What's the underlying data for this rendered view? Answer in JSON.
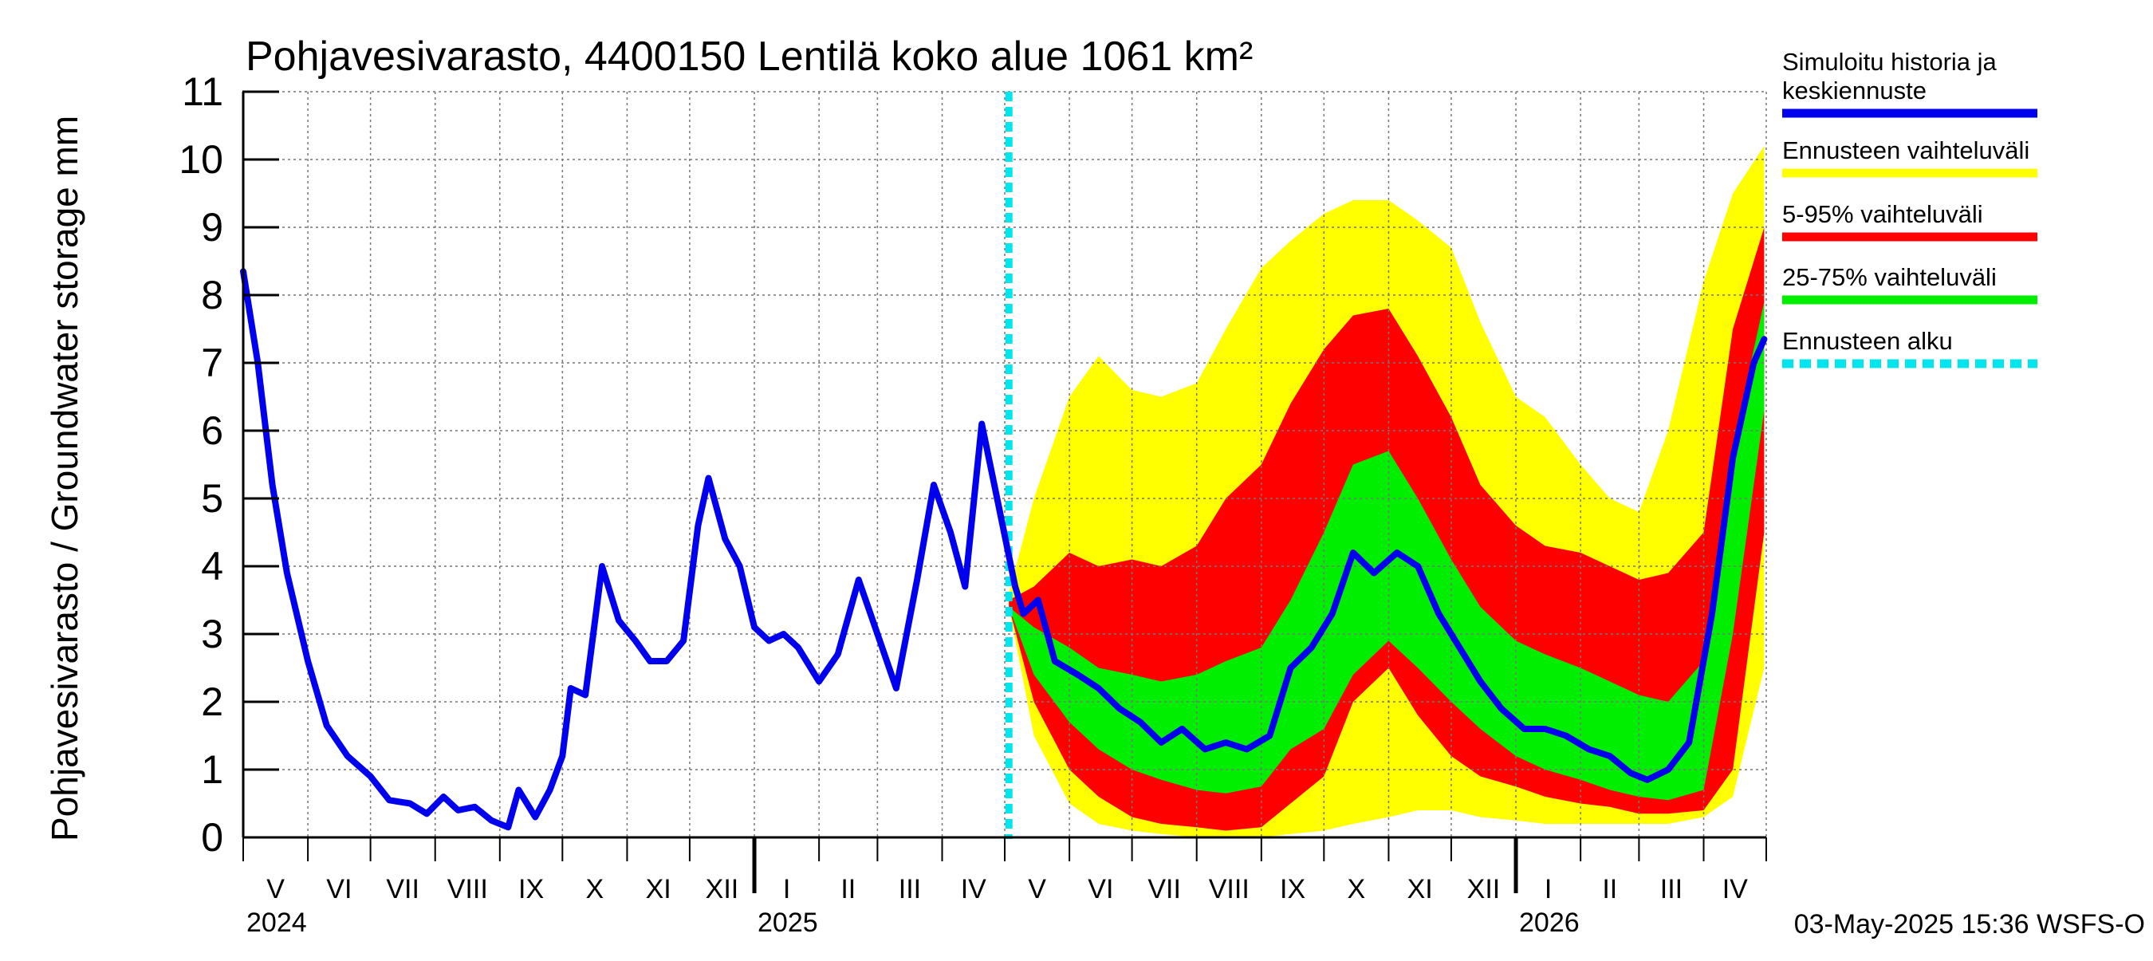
{
  "chart_data": {
    "type": "area",
    "title": "Pohjavesivarasto, 4400150 Lentilä koko alue 1061 km²",
    "ylabel": "Pohjavesivarasto / Groundwater storage   mm",
    "ylim": [
      0,
      11
    ],
    "yticks": [
      "0",
      "1",
      "2",
      "3",
      "4",
      "5",
      "6",
      "7",
      "8",
      "9",
      "10",
      "11"
    ],
    "xlim": [
      "2024-05-01",
      "2026-04-30"
    ],
    "grid": true,
    "legend_position": "right",
    "month_labels": [
      "V",
      "VI",
      "VII",
      "VIII",
      "IX",
      "X",
      "XI",
      "XII",
      "I",
      "II",
      "III",
      "IV",
      "V",
      "VI",
      "VII",
      "VIII",
      "IX",
      "X",
      "XI",
      "XII",
      "I",
      "II",
      "III",
      "IV"
    ],
    "year_labels": [
      "2024",
      "2025",
      "2026"
    ],
    "forecast_start": "2025-05-03",
    "footer": "03-May-2025 15:36 WSFS-O",
    "legend": [
      {
        "label": "Simuloitu historia ja keskiennuste",
        "color": "#0000ee"
      },
      {
        "label": "Ennusteen vaihteluväli",
        "color": "#ffff00"
      },
      {
        "label": "5-95% vaihteluväli",
        "color": "#ff0000"
      },
      {
        "label": "25-75% vaihteluväli",
        "color": "#00ee00"
      },
      {
        "label": "Ennusteen alku",
        "color": "#00e5ee"
      }
    ],
    "series": [
      {
        "name": "Simuloitu historia ja keskiennuste",
        "color": "#0000ee",
        "points": [
          [
            "2024-05-01",
            8.35
          ],
          [
            "2024-05-08",
            7.0
          ],
          [
            "2024-05-15",
            5.2
          ],
          [
            "2024-05-22",
            3.9
          ],
          [
            "2024-06-01",
            2.6
          ],
          [
            "2024-06-10",
            1.65
          ],
          [
            "2024-06-20",
            1.2
          ],
          [
            "2024-07-01",
            0.9
          ],
          [
            "2024-07-10",
            0.55
          ],
          [
            "2024-07-20",
            0.5
          ],
          [
            "2024-07-28",
            0.35
          ],
          [
            "2024-08-05",
            0.6
          ],
          [
            "2024-08-12",
            0.4
          ],
          [
            "2024-08-20",
            0.45
          ],
          [
            "2024-08-28",
            0.25
          ],
          [
            "2024-09-05",
            0.15
          ],
          [
            "2024-09-10",
            0.7
          ],
          [
            "2024-09-18",
            0.3
          ],
          [
            "2024-09-25",
            0.7
          ],
          [
            "2024-10-01",
            1.2
          ],
          [
            "2024-10-05",
            2.2
          ],
          [
            "2024-10-12",
            2.1
          ],
          [
            "2024-10-20",
            4.0
          ],
          [
            "2024-10-28",
            3.2
          ],
          [
            "2024-11-05",
            2.9
          ],
          [
            "2024-11-12",
            2.6
          ],
          [
            "2024-11-20",
            2.6
          ],
          [
            "2024-11-28",
            2.9
          ],
          [
            "2024-12-05",
            4.6
          ],
          [
            "2024-12-10",
            5.3
          ],
          [
            "2024-12-18",
            4.4
          ],
          [
            "2024-12-25",
            4.0
          ],
          [
            "2025-01-01",
            3.1
          ],
          [
            "2025-01-08",
            2.9
          ],
          [
            "2025-01-15",
            3.0
          ],
          [
            "2025-01-22",
            2.8
          ],
          [
            "2025-02-01",
            2.3
          ],
          [
            "2025-02-10",
            2.7
          ],
          [
            "2025-02-20",
            3.8
          ],
          [
            "2025-03-01",
            3.0
          ],
          [
            "2025-03-10",
            2.2
          ],
          [
            "2025-03-20",
            3.8
          ],
          [
            "2025-03-28",
            5.2
          ],
          [
            "2025-04-05",
            4.5
          ],
          [
            "2025-04-12",
            3.7
          ],
          [
            "2025-04-20",
            6.1
          ],
          [
            "2025-04-28",
            4.9
          ],
          [
            "2025-05-06",
            3.7
          ],
          [
            "2025-05-10",
            3.3
          ],
          [
            "2025-05-17",
            3.5
          ],
          [
            "2025-05-25",
            2.6
          ],
          [
            "2025-06-05",
            2.4
          ],
          [
            "2025-06-15",
            2.2
          ],
          [
            "2025-06-25",
            1.9
          ],
          [
            "2025-07-05",
            1.7
          ],
          [
            "2025-07-15",
            1.4
          ],
          [
            "2025-07-25",
            1.6
          ],
          [
            "2025-08-05",
            1.3
          ],
          [
            "2025-08-15",
            1.4
          ],
          [
            "2025-08-25",
            1.3
          ],
          [
            "2025-09-05",
            1.5
          ],
          [
            "2025-09-15",
            2.5
          ],
          [
            "2025-09-25",
            2.8
          ],
          [
            "2025-10-05",
            3.3
          ],
          [
            "2025-10-15",
            4.2
          ],
          [
            "2025-10-25",
            3.9
          ],
          [
            "2025-11-05",
            4.2
          ],
          [
            "2025-11-15",
            4.0
          ],
          [
            "2025-11-25",
            3.3
          ],
          [
            "2025-12-05",
            2.8
          ],
          [
            "2025-12-15",
            2.3
          ],
          [
            "2025-12-25",
            1.9
          ],
          [
            "2026-01-05",
            1.6
          ],
          [
            "2026-01-15",
            1.6
          ],
          [
            "2026-01-25",
            1.5
          ],
          [
            "2026-02-05",
            1.3
          ],
          [
            "2026-02-15",
            1.2
          ],
          [
            "2026-02-25",
            0.95
          ],
          [
            "2026-03-05",
            0.85
          ],
          [
            "2026-03-15",
            1.0
          ],
          [
            "2026-03-25",
            1.4
          ],
          [
            "2026-04-05",
            3.3
          ],
          [
            "2026-04-15",
            5.6
          ],
          [
            "2026-04-25",
            7.0
          ],
          [
            "2026-04-30",
            7.35
          ]
        ]
      }
    ],
    "bands": {
      "x": [
        "2025-05-03",
        "2025-05-15",
        "2025-06-01",
        "2025-06-15",
        "2025-07-01",
        "2025-07-15",
        "2025-08-01",
        "2025-08-15",
        "2025-09-01",
        "2025-09-15",
        "2025-10-01",
        "2025-10-15",
        "2025-11-01",
        "2025-11-15",
        "2025-12-01",
        "2025-12-15",
        "2026-01-01",
        "2026-01-15",
        "2026-02-01",
        "2026-02-15",
        "2026-03-01",
        "2026-03-15",
        "2026-04-01",
        "2026-04-15",
        "2026-04-30"
      ],
      "min": [
        3.4,
        1.5,
        0.5,
        0.2,
        0.1,
        0.05,
        0.0,
        0.0,
        0.0,
        0.05,
        0.1,
        0.2,
        0.3,
        0.4,
        0.4,
        0.3,
        0.25,
        0.2,
        0.2,
        0.2,
        0.2,
        0.2,
        0.3,
        0.6,
        2.5
      ],
      "p05": [
        3.4,
        2.0,
        1.0,
        0.6,
        0.3,
        0.2,
        0.15,
        0.1,
        0.15,
        0.5,
        0.9,
        2.0,
        2.5,
        1.8,
        1.2,
        0.9,
        0.75,
        0.6,
        0.5,
        0.45,
        0.35,
        0.35,
        0.4,
        1.0,
        4.5
      ],
      "p25": [
        3.4,
        2.4,
        1.7,
        1.3,
        1.0,
        0.85,
        0.7,
        0.65,
        0.75,
        1.3,
        1.6,
        2.4,
        2.9,
        2.5,
        2.0,
        1.6,
        1.2,
        1.0,
        0.85,
        0.7,
        0.6,
        0.55,
        0.7,
        3.0,
        6.3
      ],
      "p75": [
        3.4,
        3.1,
        2.8,
        2.5,
        2.4,
        2.3,
        2.4,
        2.6,
        2.8,
        3.5,
        4.5,
        5.5,
        5.7,
        5.0,
        4.1,
        3.4,
        2.9,
        2.7,
        2.5,
        2.3,
        2.1,
        2.0,
        2.6,
        5.8,
        7.9
      ],
      "p95": [
        3.5,
        3.7,
        4.2,
        4.0,
        4.1,
        4.0,
        4.3,
        5.0,
        5.5,
        6.4,
        7.2,
        7.7,
        7.8,
        7.1,
        6.2,
        5.2,
        4.6,
        4.3,
        4.2,
        4.0,
        3.8,
        3.9,
        4.5,
        7.5,
        9.0
      ],
      "max": [
        3.6,
        5.0,
        6.5,
        7.1,
        6.6,
        6.5,
        6.7,
        7.5,
        8.4,
        8.8,
        9.2,
        9.4,
        9.4,
        9.1,
        8.7,
        7.6,
        6.5,
        6.2,
        5.5,
        5.0,
        4.8,
        6.0,
        8.2,
        9.5,
        10.2
      ]
    }
  }
}
